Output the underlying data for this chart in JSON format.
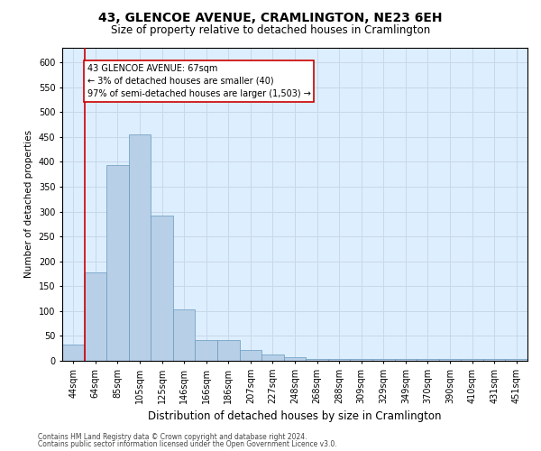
{
  "title": "43, GLENCOE AVENUE, CRAMLINGTON, NE23 6EH",
  "subtitle": "Size of property relative to detached houses in Cramlington",
  "xlabel": "Distribution of detached houses by size in Cramlington",
  "ylabel": "Number of detached properties",
  "footnote1": "Contains HM Land Registry data © Crown copyright and database right 2024.",
  "footnote2": "Contains public sector information licensed under the Open Government Licence v3.0.",
  "categories": [
    "44sqm",
    "64sqm",
    "85sqm",
    "105sqm",
    "125sqm",
    "146sqm",
    "166sqm",
    "186sqm",
    "207sqm",
    "227sqm",
    "248sqm",
    "268sqm",
    "288sqm",
    "309sqm",
    "329sqm",
    "349sqm",
    "370sqm",
    "390sqm",
    "410sqm",
    "431sqm",
    "451sqm"
  ],
  "values": [
    33,
    178,
    393,
    455,
    292,
    103,
    42,
    42,
    22,
    12,
    8,
    3,
    3,
    3,
    3,
    3,
    3,
    3,
    3,
    3,
    3
  ],
  "bar_color": "#b8cfe8",
  "bar_edge_color": "#6699bb",
  "ylim": [
    0,
    630
  ],
  "yticks": [
    0,
    50,
    100,
    150,
    200,
    250,
    300,
    350,
    400,
    450,
    500,
    550,
    600
  ],
  "annotation_box_text": "43 GLENCOE AVENUE: 67sqm\n← 3% of detached houses are smaller (40)\n97% of semi-detached houses are larger (1,503) →",
  "annotation_box_color": "#ffffff",
  "annotation_box_edge_color": "#cc0000",
  "vline_color": "#cc0000",
  "background_color": "#ffffff",
  "plot_bg_color": "#ddeeff",
  "grid_color": "#c8d8e8",
  "title_fontsize": 10,
  "subtitle_fontsize": 8.5,
  "xlabel_fontsize": 8.5,
  "ylabel_fontsize": 7.5,
  "tick_fontsize": 7,
  "annot_fontsize": 7,
  "footnote_fontsize": 5.5
}
